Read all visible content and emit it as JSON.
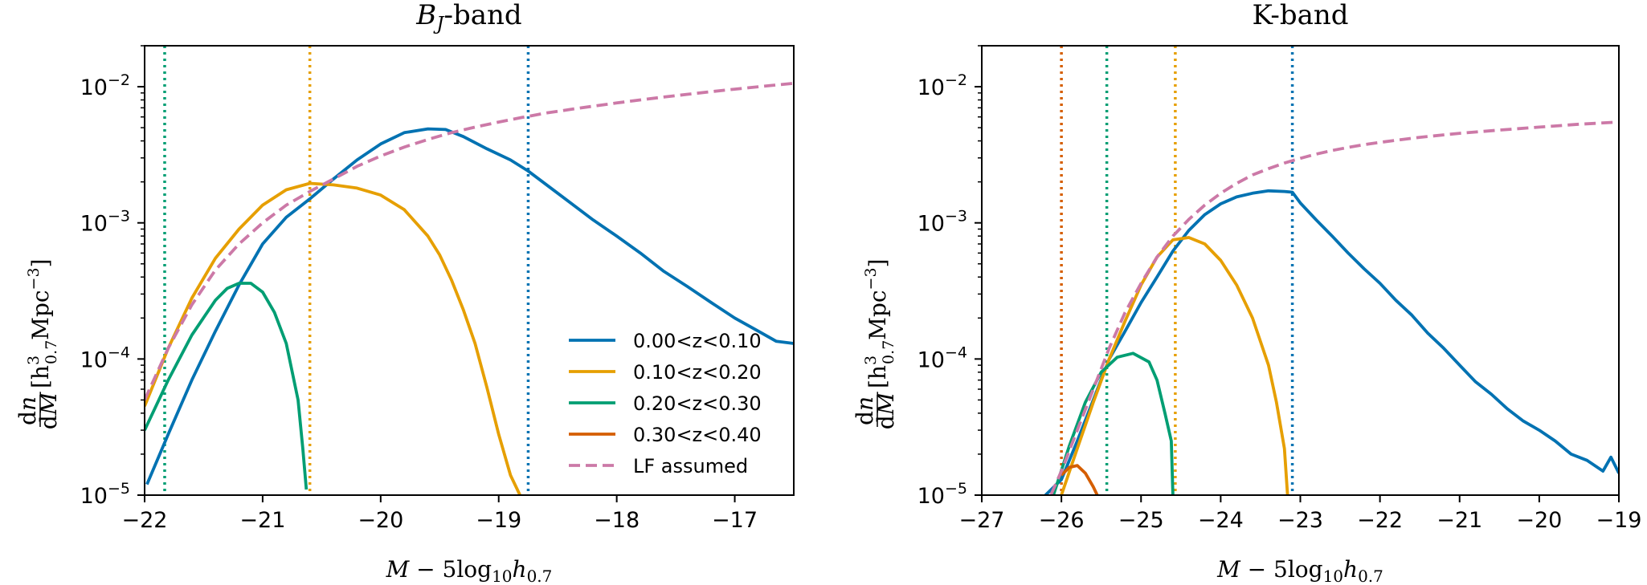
{
  "colors": {
    "0.00<z<0.10": "#0072b2",
    "0.10<z<0.20": "#e69f00",
    "0.20<z<0.30": "#009e73",
    "0.30<z<0.40": "#d55e00",
    "LF assumed": "#cc79a7"
  },
  "chart_data": [
    {
      "type": "line",
      "title_main": "B",
      "title_sub": "J",
      "title_rest": "-band",
      "xlabel_prefix": "M − 5log",
      "xlabel_sub10": "10",
      "xlabel_h": "h",
      "xlabel_sub": "0.7",
      "ylabel": "dn/dM [h³0.7 Mpc⁻³]",
      "xlim": [
        -22,
        -16.5
      ],
      "ylim": [
        1e-05,
        0.02
      ],
      "yscale": "log",
      "xticks": [
        -22,
        -21,
        -20,
        -19,
        -18,
        -17
      ],
      "xtick_labels": [
        "−22",
        "−21",
        "−20",
        "−19",
        "−18",
        "−17"
      ],
      "yticks": [
        1e-05,
        0.0001,
        0.001,
        0.01
      ],
      "ytick_labels": [
        [
          "10",
          "−5"
        ],
        [
          "10",
          "−4"
        ],
        [
          "10",
          "−3"
        ],
        [
          "10",
          "−2"
        ]
      ],
      "legend": {
        "location": "lower right",
        "entries": [
          "0.00<z<0.10",
          "0.10<z<0.20",
          "0.20<z<0.30",
          "0.30<z<0.40",
          "LF assumed"
        ]
      },
      "vlines": [
        {
          "series": "0.20<z<0.30",
          "x": -21.83
        },
        {
          "series": "0.10<z<0.20",
          "x": -20.6
        },
        {
          "series": "0.00<z<0.10",
          "x": -18.75
        }
      ],
      "series": [
        {
          "name": "0.00<z<0.10",
          "style": "solid",
          "x": [
            -21.98,
            -21.8,
            -21.6,
            -21.4,
            -21.2,
            -21.0,
            -20.8,
            -20.6,
            -20.4,
            -20.2,
            -20.0,
            -19.8,
            -19.6,
            -19.45,
            -19.3,
            -19.1,
            -18.9,
            -18.75,
            -18.5,
            -18.2,
            -18.0,
            -17.8,
            -17.6,
            -17.4,
            -17.2,
            -17.0,
            -16.8,
            -16.65,
            -16.5
          ],
          "y": [
            1.2e-05,
            2.8e-05,
            7e-05,
            0.00016,
            0.00035,
            0.0007,
            0.0011,
            0.0015,
            0.0021,
            0.0029,
            0.0038,
            0.0046,
            0.0049,
            0.00485,
            0.0043,
            0.0035,
            0.0029,
            0.0024,
            0.00165,
            0.00105,
            0.0008,
            0.0006,
            0.00044,
            0.00034,
            0.00026,
            0.0002,
            0.00016,
            0.000135,
            0.00013
          ]
        },
        {
          "name": "0.10<z<0.20",
          "style": "solid",
          "x": [
            -22.0,
            -21.8,
            -21.6,
            -21.4,
            -21.2,
            -21.0,
            -20.8,
            -20.6,
            -20.4,
            -20.2,
            -20.0,
            -19.8,
            -19.6,
            -19.5,
            -19.4,
            -19.3,
            -19.2,
            -19.1,
            -19.0,
            -18.9,
            -18.82
          ],
          "y": [
            4.5e-05,
            0.00012,
            0.00028,
            0.00055,
            0.0009,
            0.00135,
            0.00175,
            0.00195,
            0.0019,
            0.0018,
            0.0016,
            0.00125,
            0.0008,
            0.00058,
            0.00038,
            0.00023,
            0.00013,
            6.2e-05,
            2.8e-05,
            1.4e-05,
            1e-05
          ]
        },
        {
          "name": "0.20<z<0.30",
          "style": "solid",
          "x": [
            -22.0,
            -21.8,
            -21.6,
            -21.4,
            -21.3,
            -21.2,
            -21.1,
            -21.0,
            -20.9,
            -20.8,
            -20.7,
            -20.66,
            -20.63
          ],
          "y": [
            3e-05,
            7e-05,
            0.00015,
            0.00027,
            0.00033,
            0.00036,
            0.00036,
            0.00031,
            0.00022,
            0.00013,
            5e-05,
            2.2e-05,
            1.1e-05
          ]
        },
        {
          "name": "LF assumed",
          "style": "dashed",
          "x": [
            -22.0,
            -21.8,
            -21.6,
            -21.4,
            -21.2,
            -21.0,
            -20.8,
            -20.6,
            -20.4,
            -20.2,
            -20.0,
            -19.8,
            -19.6,
            -19.4,
            -19.2,
            -19.0,
            -18.8,
            -18.6,
            -18.4,
            -18.2,
            -18.0,
            -17.8,
            -17.6,
            -17.4,
            -17.2,
            -17.0,
            -16.8,
            -16.5
          ],
          "y": [
            5e-05,
            0.00012,
            0.00025,
            0.00045,
            0.0007,
            0.001,
            0.00135,
            0.0017,
            0.0021,
            0.0026,
            0.0031,
            0.0036,
            0.0041,
            0.0046,
            0.00505,
            0.0055,
            0.00595,
            0.0064,
            0.0068,
            0.0072,
            0.0076,
            0.008,
            0.0084,
            0.0088,
            0.0092,
            0.0096,
            0.01,
            0.0106
          ]
        }
      ]
    },
    {
      "type": "line",
      "title_main": "K-band",
      "title_sub": "",
      "title_rest": "",
      "xlabel_prefix": "M − 5log",
      "xlabel_sub10": "10",
      "xlabel_h": "h",
      "xlabel_sub": "0.7",
      "ylabel": "dn/dM [h³0.7 Mpc⁻³]",
      "xlim": [
        -27,
        -19
      ],
      "ylim": [
        1e-05,
        0.02
      ],
      "yscale": "log",
      "xticks": [
        -27,
        -26,
        -25,
        -24,
        -23,
        -22,
        -21,
        -20,
        -19
      ],
      "xtick_labels": [
        "−27",
        "−26",
        "−25",
        "−24",
        "−23",
        "−22",
        "−21",
        "−20",
        "−19"
      ],
      "yticks": [
        1e-05,
        0.0001,
        0.001,
        0.01
      ],
      "ytick_labels": [
        [
          "10",
          "−5"
        ],
        [
          "10",
          "−4"
        ],
        [
          "10",
          "−3"
        ],
        [
          "10",
          "−2"
        ]
      ],
      "vlines": [
        {
          "series": "0.30<z<0.40",
          "x": -26.0
        },
        {
          "series": "0.20<z<0.30",
          "x": -25.43
        },
        {
          "series": "0.10<z<0.20",
          "x": -24.57
        },
        {
          "series": "0.00<z<0.10",
          "x": -23.1
        }
      ],
      "series": [
        {
          "name": "0.00<z<0.10",
          "style": "solid",
          "x": [
            -26.2,
            -26.0,
            -25.8,
            -25.6,
            -25.4,
            -25.2,
            -25.0,
            -24.8,
            -24.6,
            -24.4,
            -24.2,
            -24.0,
            -23.8,
            -23.6,
            -23.4,
            -23.2,
            -23.1,
            -23.0,
            -22.8,
            -22.6,
            -22.4,
            -22.2,
            -22.0,
            -21.8,
            -21.6,
            -21.4,
            -21.2,
            -21.0,
            -20.8,
            -20.6,
            -20.4,
            -20.2,
            -20.0,
            -19.8,
            -19.6,
            -19.4,
            -19.2,
            -19.1,
            -19.0
          ],
          "y": [
            1e-05,
            1.3e-05,
            2.5e-05,
            5e-05,
            0.0001,
            0.00016,
            0.00026,
            0.0004,
            0.00062,
            0.00088,
            0.00115,
            0.00138,
            0.00155,
            0.00165,
            0.00172,
            0.0017,
            0.00168,
            0.0014,
            0.00105,
            0.0008,
            0.0006,
            0.00046,
            0.00036,
            0.00027,
            0.00021,
            0.000155,
            0.00012,
            9e-05,
            6.8e-05,
            5.5e-05,
            4.3e-05,
            3.5e-05,
            3e-05,
            2.5e-05,
            2e-05,
            1.8e-05,
            1.5e-05,
            1.9e-05,
            1.45e-05
          ]
        },
        {
          "name": "0.10<z<0.20",
          "style": "solid",
          "x": [
            -26.0,
            -25.8,
            -25.6,
            -25.4,
            -25.2,
            -25.0,
            -24.8,
            -24.6,
            -24.4,
            -24.2,
            -24.0,
            -23.8,
            -23.6,
            -23.4,
            -23.3,
            -23.2,
            -23.16
          ],
          "y": [
            1e-05,
            2.2e-05,
            4.8e-05,
            0.0001,
            0.00019,
            0.00035,
            0.00056,
            0.00075,
            0.00078,
            0.0007,
            0.00053,
            0.00035,
            0.0002,
            9e-05,
            4.8e-05,
            2.2e-05,
            1e-05
          ]
        },
        {
          "name": "0.20<z<0.30",
          "style": "solid",
          "x": [
            -26.1,
            -25.9,
            -25.7,
            -25.5,
            -25.3,
            -25.1,
            -24.9,
            -24.8,
            -24.7,
            -24.62,
            -24.6
          ],
          "y": [
            1e-05,
            2.3e-05,
            4.8e-05,
            8e-05,
            0.000103,
            0.00011,
            9.5e-05,
            7e-05,
            4e-05,
            2.5e-05,
            1e-05
          ]
        },
        {
          "name": "0.30<z<0.40",
          "style": "solid",
          "x": [
            -26.0,
            -25.9,
            -25.8,
            -25.7,
            -25.6,
            -25.55
          ],
          "y": [
            1.4e-05,
            1.6e-05,
            1.65e-05,
            1.45e-05,
            1.15e-05,
            1e-05
          ]
        },
        {
          "name": "LF assumed",
          "style": "dashed",
          "x": [
            -26.3,
            -26.0,
            -25.8,
            -25.6,
            -25.4,
            -25.2,
            -25.0,
            -24.8,
            -24.6,
            -24.4,
            -24.2,
            -24.0,
            -23.8,
            -23.6,
            -23.4,
            -23.2,
            -23.0,
            -22.8,
            -22.6,
            -22.4,
            -22.2,
            -22.0,
            -21.5,
            -21.0,
            -20.5,
            -20.0,
            -19.5,
            -19.0
          ],
          "y": [
            6e-06,
            1.5e-05,
            3e-05,
            6e-05,
            0.00012,
            0.00022,
            0.00036,
            0.00056,
            0.0008,
            0.00106,
            0.00135,
            0.00165,
            0.00195,
            0.00225,
            0.0025,
            0.00275,
            0.00298,
            0.0032,
            0.0034,
            0.00358,
            0.00375,
            0.0039,
            0.00425,
            0.00455,
            0.0048,
            0.00505,
            0.0053,
            0.0055
          ]
        }
      ]
    }
  ]
}
